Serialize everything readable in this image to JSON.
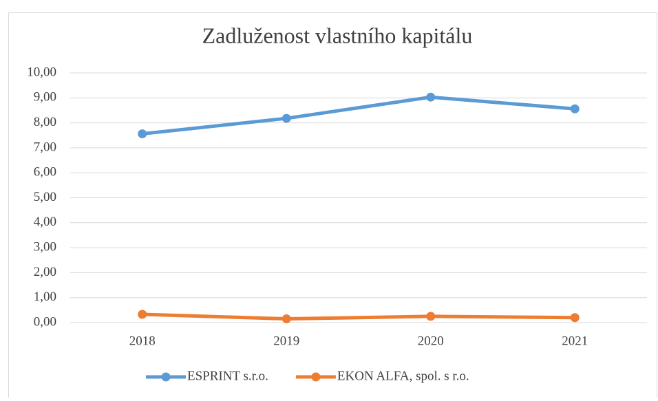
{
  "chart_data": {
    "type": "line",
    "title": "Zadluženost vlastního kapitálu",
    "categories": [
      "2018",
      "2019",
      "2020",
      "2021"
    ],
    "series": [
      {
        "name": "ESPRINT s.r.o.",
        "color": "#5b9bd5",
        "values": [
          7.56,
          8.18,
          9.03,
          8.56
        ]
      },
      {
        "name": "EKON ALFA, spol. s r.o.",
        "color": "#ed7d31",
        "values": [
          0.33,
          0.15,
          0.25,
          0.2
        ]
      }
    ],
    "ylim": [
      0,
      10
    ],
    "yticks": [
      {
        "value": 0,
        "label": "0,00"
      },
      {
        "value": 1,
        "label": "1,00"
      },
      {
        "value": 2,
        "label": "2,00"
      },
      {
        "value": 3,
        "label": "3,00"
      },
      {
        "value": 4,
        "label": "4,00"
      },
      {
        "value": 5,
        "label": "5,00"
      },
      {
        "value": 6,
        "label": "6,00"
      },
      {
        "value": 7,
        "label": "7,00"
      },
      {
        "value": 8,
        "label": "8,00"
      },
      {
        "value": 9,
        "label": "9,00"
      },
      {
        "value": 10,
        "label": "10,00"
      }
    ],
    "grid": true,
    "legend": "bottom"
  }
}
